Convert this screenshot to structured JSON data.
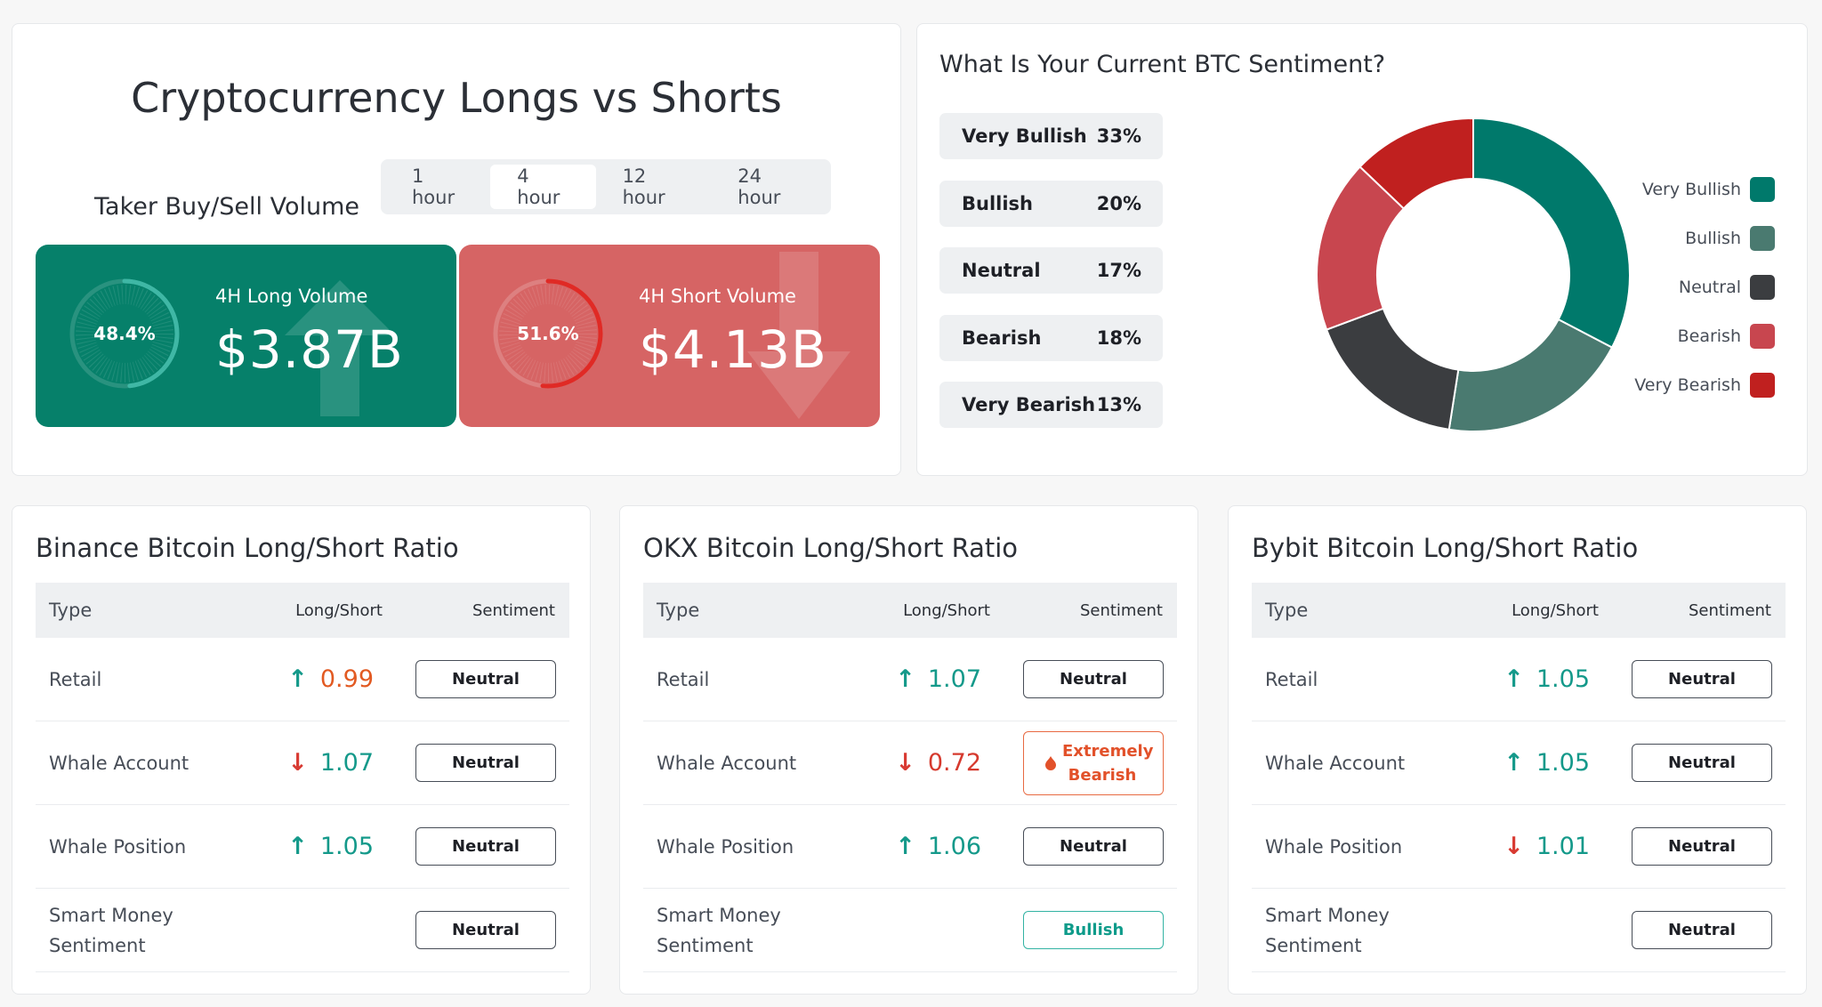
{
  "longshort": {
    "title": "Cryptocurrency Longs vs Shorts",
    "taker_label": "Taker Buy/Sell Volume",
    "tabs": [
      {
        "label": "1 hour",
        "active": false
      },
      {
        "label": "4 hour",
        "active": true
      },
      {
        "label": "12 hour",
        "active": false
      },
      {
        "label": "24 hour",
        "active": false
      }
    ],
    "long": {
      "label": "4H Long Volume",
      "value": "$3.87B",
      "percent_text": "48.4%",
      "percent": 48.4,
      "color": "#06806a"
    },
    "short": {
      "label": "4H Short Volume",
      "value": "$4.13B",
      "percent_text": "51.6%",
      "percent": 51.6,
      "color": "#d66464"
    }
  },
  "sentiment": {
    "title": "What Is Your Current BTC Sentiment?",
    "items": [
      {
        "label": "Very Bullish",
        "pct": "33%",
        "value": 33,
        "color": "#00796b"
      },
      {
        "label": "Bullish",
        "pct": "20%",
        "value": 20,
        "color": "#4a7a70"
      },
      {
        "label": "Neutral",
        "pct": "17%",
        "value": 17,
        "color": "#3b3d40"
      },
      {
        "label": "Bearish",
        "pct": "18%",
        "value": 18,
        "color": "#c8464f"
      },
      {
        "label": "Very Bearish",
        "pct": "13%",
        "value": 13,
        "color": "#c0201f"
      }
    ]
  },
  "ratios": {
    "headers": {
      "type": "Type",
      "ratio": "Long/Short",
      "sentiment": "Sentiment"
    },
    "binance": {
      "title": "Binance Bitcoin Long/Short Ratio",
      "rows": [
        {
          "type": "Retail",
          "dir": "up",
          "value": "0.99",
          "value_color": "orange",
          "sentiment": "Neutral",
          "style": "neutral"
        },
        {
          "type": "Whale Account",
          "dir": "down",
          "value": "1.07",
          "value_color": "teal",
          "sentiment": "Neutral",
          "style": "neutral"
        },
        {
          "type": "Whale Position",
          "dir": "up",
          "value": "1.05",
          "value_color": "teal",
          "sentiment": "Neutral",
          "style": "neutral"
        },
        {
          "type": "Smart Money Sentiment",
          "dir": "",
          "value": "",
          "value_color": "",
          "sentiment": "Neutral",
          "style": "neutral"
        }
      ]
    },
    "okx": {
      "title": "OKX Bitcoin Long/Short Ratio",
      "rows": [
        {
          "type": "Retail",
          "dir": "up",
          "value": "1.07",
          "value_color": "teal",
          "sentiment": "Neutral",
          "style": "neutral"
        },
        {
          "type": "Whale Account",
          "dir": "down",
          "value": "0.72",
          "value_color": "red",
          "sentiment": "Extremely Bearish",
          "style": "ext"
        },
        {
          "type": "Whale Position",
          "dir": "up",
          "value": "1.06",
          "value_color": "teal",
          "sentiment": "Neutral",
          "style": "neutral"
        },
        {
          "type": "Smart Money Sentiment",
          "dir": "",
          "value": "",
          "value_color": "",
          "sentiment": "Bullish",
          "style": "bullish"
        }
      ]
    },
    "bybit": {
      "title": "Bybit Bitcoin Long/Short Ratio",
      "rows": [
        {
          "type": "Retail",
          "dir": "up",
          "value": "1.05",
          "value_color": "teal",
          "sentiment": "Neutral",
          "style": "neutral"
        },
        {
          "type": "Whale Account",
          "dir": "up",
          "value": "1.05",
          "value_color": "teal",
          "sentiment": "Neutral",
          "style": "neutral"
        },
        {
          "type": "Whale Position",
          "dir": "down",
          "value": "1.01",
          "value_color": "teal",
          "sentiment": "Neutral",
          "style": "neutral"
        },
        {
          "type": "Smart Money Sentiment",
          "dir": "",
          "value": "",
          "value_color": "",
          "sentiment": "Neutral",
          "style": "neutral"
        }
      ]
    }
  }
}
